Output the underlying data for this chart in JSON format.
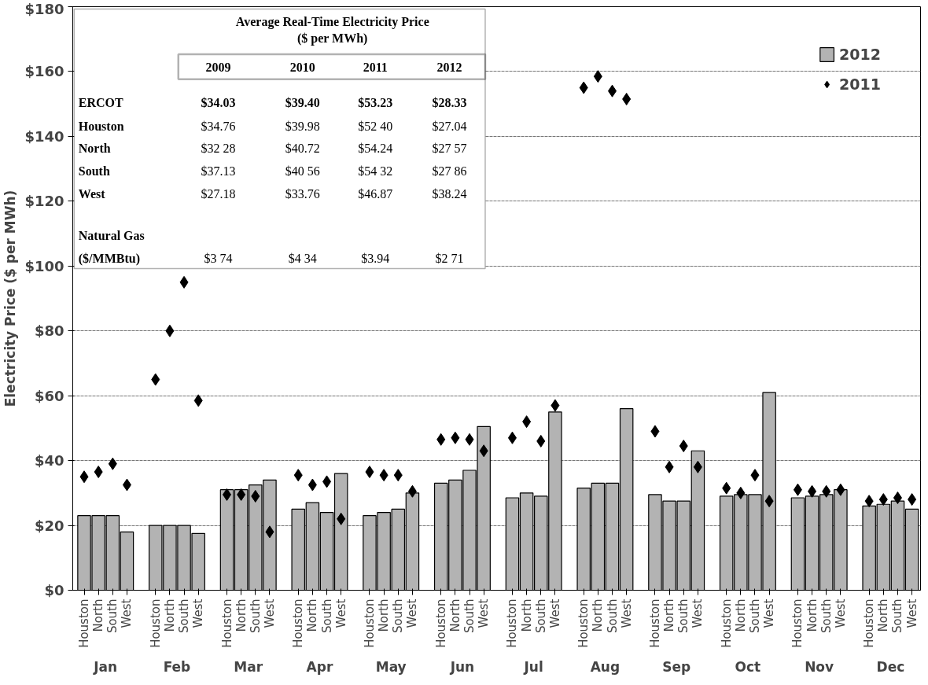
{
  "chart_data": {
    "type": "bar",
    "ylabel": "Electricity Price ($ per MWh)",
    "categories": [
      "Houston",
      "North",
      "South",
      "West",
      "Houston",
      "North",
      "South",
      "West",
      "Houston",
      "North",
      "South",
      "West",
      "Houston",
      "North",
      "South",
      "West",
      "Houston",
      "North",
      "South",
      "West",
      "Houston",
      "North",
      "South",
      "West",
      "Houston",
      "North",
      "South",
      "West",
      "Houston",
      "North",
      "South",
      "West",
      "Houston",
      "North",
      "South",
      "West",
      "Houston",
      "North",
      "South",
      "West",
      "Houston",
      "North",
      "South",
      "West",
      "Houston",
      "North",
      "South",
      "West"
    ],
    "series": [
      {
        "name": "2012",
        "color": "#b3b3b3",
        "values": [
          23,
          23,
          23,
          18,
          20,
          20,
          20,
          17.5,
          31,
          31,
          32.5,
          34,
          25,
          27,
          24,
          36,
          23,
          24,
          25,
          30,
          33,
          34,
          37,
          50.5,
          28.5,
          30,
          29,
          55,
          31.5,
          33,
          33,
          56,
          29.5,
          27.5,
          27.5,
          43,
          29,
          29.5,
          29.5,
          61,
          28.5,
          29,
          29.5,
          31,
          26,
          26.5,
          27.5,
          25
        ]
      },
      {
        "name": "2011",
        "type": "scatter",
        "color": "#000000",
        "values": [
          35,
          36.5,
          39,
          32.5,
          65,
          80,
          95,
          58.5,
          29.5,
          29.5,
          29,
          18,
          35.5,
          32.5,
          33.5,
          22,
          36.5,
          35.5,
          35.5,
          30.5,
          46.5,
          47,
          46.5,
          43,
          47,
          52,
          46,
          57,
          155,
          158.5,
          154,
          151.5,
          49,
          38,
          44.5,
          38,
          31.5,
          30,
          35.5,
          27.5,
          31,
          30.5,
          30.5,
          31,
          27.5,
          28,
          28.5,
          28
        ]
      }
    ],
    "ylim": [
      0,
      180
    ],
    "yticks": [
      {
        "value": 0,
        "label": "$0"
      },
      {
        "value": 20,
        "label": "$20"
      },
      {
        "value": 40,
        "label": "$40"
      },
      {
        "value": 60,
        "label": "$60"
      },
      {
        "value": 80,
        "label": "$80"
      },
      {
        "value": 100,
        "label": "$100"
      },
      {
        "value": 120,
        "label": "$120"
      },
      {
        "value": 140,
        "label": "$140"
      },
      {
        "value": 160,
        "label": "$160"
      },
      {
        "value": 180,
        "label": "$180"
      }
    ],
    "grid": "y",
    "legend": "top right",
    "marker": "diamond",
    "annotations": [
      "Jan",
      "Feb",
      "Mar",
      "Apr",
      "May",
      "Jun",
      "Jul",
      "Aug",
      "Sep",
      "Oct",
      "Nov",
      "Dec",
      "Average Real-Time Electricity Price",
      "($ per MWh)",
      "2009",
      "2010",
      "2011",
      "2012",
      "ERCOT",
      "$34.03",
      "$39.40",
      "$53.23",
      "$28.33",
      "Houston",
      "$34.76",
      "$39.98",
      "$52 40",
      "$27.04",
      "North",
      "$32 28",
      "$40.72",
      "$54.24",
      "$27 57",
      "South",
      "$37.13",
      "$40 56",
      "$54 32",
      "$27 86",
      "West",
      "$27.18",
      "$33.76",
      "$46.87",
      "$38.24",
      "Natural Gas",
      "($/MMBtu)",
      "$3 74",
      "$4 34",
      "$3.94",
      "$2 71"
    ]
  }
}
